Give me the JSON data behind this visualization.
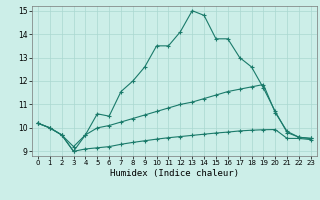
{
  "xlabel": "Humidex (Indice chaleur)",
  "xlim": [
    -0.5,
    23.5
  ],
  "ylim": [
    8.8,
    15.2
  ],
  "yticks": [
    9,
    10,
    11,
    12,
    13,
    14,
    15
  ],
  "xticks": [
    0,
    1,
    2,
    3,
    4,
    5,
    6,
    7,
    8,
    9,
    10,
    11,
    12,
    13,
    14,
    15,
    16,
    17,
    18,
    19,
    20,
    21,
    22,
    23
  ],
  "bg_color": "#cceee8",
  "line_color": "#1a7a6a",
  "grid_color": "#aad8d0",
  "line1_x": [
    0,
    1,
    2,
    3,
    4,
    5,
    6,
    7,
    8,
    9,
    10,
    11,
    12,
    13,
    14,
    15,
    16,
    17,
    18,
    19,
    20,
    21,
    22,
    23
  ],
  "line1_y": [
    10.2,
    10.0,
    9.7,
    9.0,
    9.7,
    10.6,
    10.5,
    11.55,
    12.0,
    12.6,
    13.5,
    13.5,
    14.1,
    15.0,
    14.8,
    13.8,
    13.8,
    13.0,
    12.6,
    11.7,
    10.7,
    9.8,
    9.6,
    9.55
  ],
  "line2_x": [
    0,
    1,
    2,
    3,
    4,
    5,
    6,
    7,
    8,
    9,
    10,
    11,
    12,
    13,
    14,
    15,
    16,
    17,
    18,
    19,
    20,
    21,
    22,
    23
  ],
  "line2_y": [
    10.2,
    10.0,
    9.7,
    9.2,
    9.7,
    10.0,
    10.1,
    10.25,
    10.4,
    10.55,
    10.7,
    10.85,
    11.0,
    11.1,
    11.25,
    11.4,
    11.55,
    11.65,
    11.75,
    11.85,
    10.65,
    9.85,
    9.6,
    9.55
  ],
  "line3_x": [
    0,
    1,
    2,
    3,
    4,
    5,
    6,
    7,
    8,
    9,
    10,
    11,
    12,
    13,
    14,
    15,
    16,
    17,
    18,
    19,
    20,
    21,
    22,
    23
  ],
  "line3_y": [
    10.2,
    10.0,
    9.7,
    9.0,
    9.1,
    9.15,
    9.2,
    9.3,
    9.38,
    9.45,
    9.52,
    9.58,
    9.63,
    9.68,
    9.73,
    9.78,
    9.82,
    9.87,
    9.9,
    9.92,
    9.93,
    9.55,
    9.55,
    9.5
  ]
}
